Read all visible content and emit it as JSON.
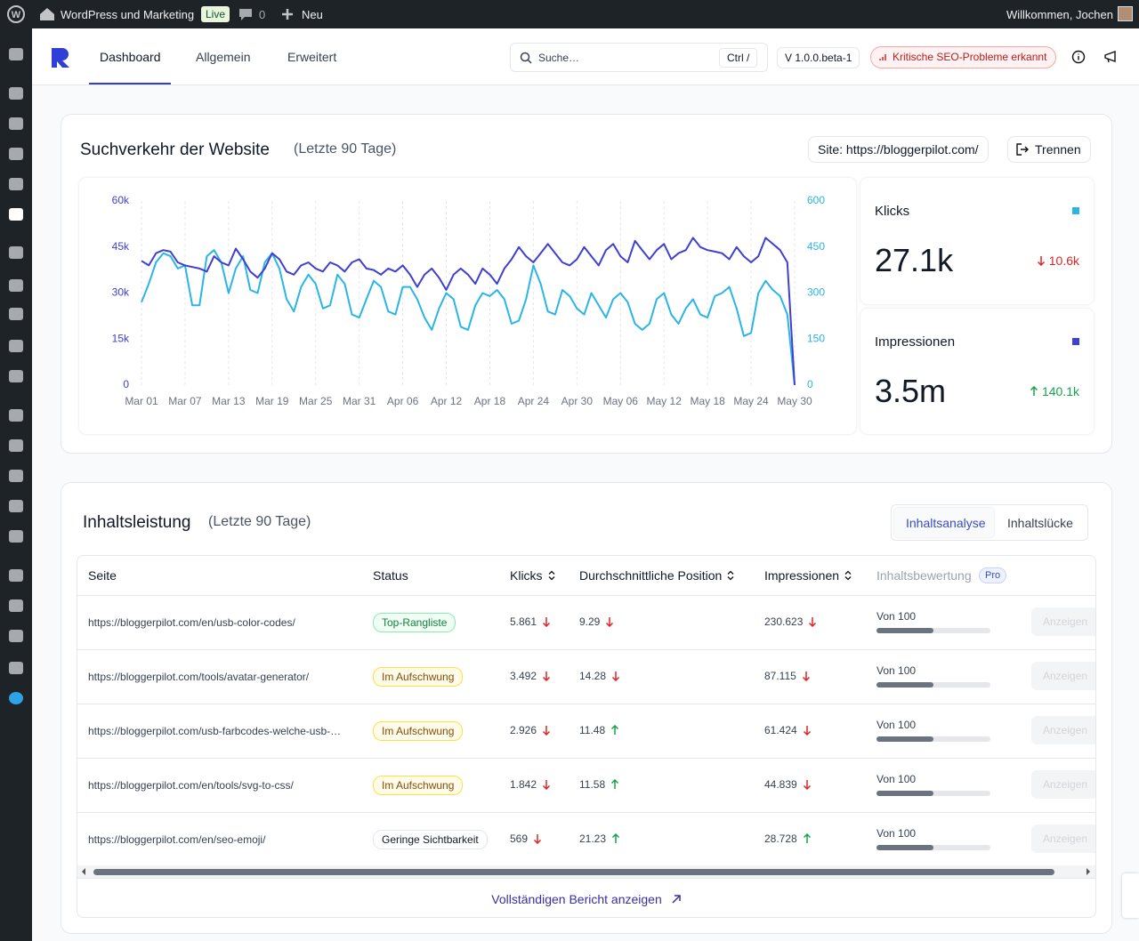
{
  "admin_bar": {
    "site": "WordPress und Marketing",
    "badge": "Live",
    "comments": "0",
    "new": "Neu",
    "greeting": "Willkommen, Jochen"
  },
  "header": {
    "tabs": [
      "Dashboard",
      "Allgemein",
      "Erweitert"
    ],
    "search_placeholder": "Suche…",
    "shortcut": "Ctrl /",
    "version": "V 1.0.0.beta-1",
    "alert": "Kritische SEO-Probleme erkannt"
  },
  "traffic": {
    "title": "Suchverkehr der Website",
    "subtitle": "(Letzte 90 Tage)",
    "site_button": "Site: https://bloggerpilot.com/",
    "disconnect": "Trennen",
    "stats": [
      {
        "value": "27.1k",
        "change": "10.6k",
        "trend": "down"
      },
      {
        "value": "3.5m",
        "change": "140.1k",
        "trend": "up"
      }
    ]
  },
  "chart_data": {
    "type": "line",
    "categories": [
      "Mar 01",
      null,
      null,
      null,
      null,
      null,
      "Mar 07",
      null,
      null,
      null,
      null,
      null,
      "Mar 13",
      null,
      null,
      null,
      null,
      null,
      "Mar 19",
      null,
      null,
      null,
      null,
      null,
      "Mar 25",
      null,
      null,
      null,
      null,
      null,
      "Mar 31",
      null,
      null,
      null,
      null,
      null,
      "Apr 06",
      null,
      null,
      null,
      null,
      null,
      "Apr 12",
      null,
      null,
      null,
      null,
      null,
      "Apr 18",
      null,
      null,
      null,
      null,
      null,
      "Apr 24",
      null,
      null,
      null,
      null,
      null,
      "Apr 30",
      null,
      null,
      null,
      null,
      null,
      "May 06",
      null,
      null,
      null,
      null,
      null,
      "May 12",
      null,
      null,
      null,
      null,
      null,
      "May 18",
      null,
      null,
      null,
      null,
      null,
      "May 24",
      null,
      null,
      null,
      null,
      null,
      "May 30"
    ],
    "series": [
      {
        "name": "Klicks",
        "color": "#2ab5e6",
        "axis": "y2",
        "values": [
          270,
          330,
          400,
          430,
          420,
          380,
          390,
          260,
          260,
          420,
          440,
          400,
          300,
          380,
          420,
          310,
          300,
          400,
          430,
          380,
          280,
          240,
          320,
          360,
          330,
          250,
          260,
          360,
          330,
          230,
          220,
          280,
          340,
          320,
          240,
          230,
          320,
          320,
          280,
          220,
          180,
          250,
          300,
          280,
          190,
          180,
          260,
          300,
          290,
          310,
          280,
          200,
          210,
          280,
          390,
          330,
          240,
          230,
          310,
          290,
          250,
          230,
          300,
          260,
          220,
          280,
          300,
          270,
          200,
          180,
          200,
          280,
          300,
          230,
          200,
          250,
          280,
          230,
          220,
          290,
          300,
          320,
          250,
          160,
          170,
          300,
          340,
          310,
          290,
          230,
          0
        ]
      },
      {
        "name": "Impressionen",
        "color": "#3f3fd1",
        "values": [
          40500,
          39000,
          43000,
          44000,
          43500,
          40000,
          39000,
          38500,
          38000,
          37000,
          42000,
          40000,
          39000,
          44500,
          41000,
          37000,
          35000,
          38000,
          43000,
          41000,
          37000,
          36000,
          39000,
          40000,
          38000,
          37000,
          40000,
          39000,
          37000,
          40000,
          41000,
          38000,
          37500,
          36000,
          38000,
          37000,
          39000,
          36000,
          32000,
          36000,
          38000,
          35000,
          31000,
          36000,
          38000,
          36000,
          33000,
          38000,
          36000,
          33000,
          38000,
          41000,
          45000,
          42000,
          40000,
          43000,
          46000,
          43000,
          40000,
          39000,
          41000,
          45000,
          42000,
          39000,
          44000,
          46000,
          42000,
          40000,
          47000,
          44000,
          41000,
          44000,
          46000,
          41000,
          43000,
          44000,
          48000,
          45000,
          44000,
          43500,
          43000,
          41000,
          45000,
          42000,
          40000,
          42000,
          48000,
          46000,
          44000,
          40000,
          0
        ]
      }
    ],
    "ylim": [
      0,
      60000
    ],
    "yticks": [
      0,
      {
        "value": 15000,
        "label": "15k"
      },
      {
        "value": 30000,
        "label": "30k"
      },
      {
        "value": 45000,
        "label": "45k"
      },
      {
        "value": 60000,
        "label": "60k"
      }
    ],
    "y2lim": [
      0,
      600
    ],
    "y2ticks": [
      0,
      150,
      300,
      450,
      600
    ],
    "grid": true
  },
  "content": {
    "title": "Inhaltsleistung",
    "subtitle": "(Letzte 90 Tage)",
    "tabs": [
      "Inhaltsanalyse",
      "Inhaltslücke"
    ],
    "columns": [
      "Seite",
      "Status",
      "Klicks",
      "Durchschnittliche Position",
      "Impressionen",
      "Inhaltsbewertung"
    ],
    "pro_badge": "Pro",
    "rows": [
      {
        "page": "https://bloggerpilot.com/en/usb-color-codes/",
        "status": "Top-Rangliste",
        "tone": "green",
        "clicks": "5.861",
        "clicks_trend": "down",
        "position": "9.29",
        "position_trend": "down",
        "impressions": "230.623",
        "impressions_trend": "down",
        "rating": "Von 100",
        "action": "Anzeigen"
      },
      {
        "page": "https://bloggerpilot.com/tools/avatar-generator/",
        "status": "Im Aufschwung",
        "tone": "yellow",
        "clicks": "3.492",
        "clicks_trend": "down",
        "position": "14.28",
        "position_trend": "down",
        "impressions": "87.115",
        "impressions_trend": "down",
        "rating": "Von 100",
        "action": "Anzeigen"
      },
      {
        "page": "https://bloggerpilot.com/usb-farbcodes-welche-usb-…",
        "status": "Im Aufschwung",
        "tone": "yellow",
        "clicks": "2.926",
        "clicks_trend": "down",
        "position": "11.48",
        "position_trend": "up",
        "impressions": "61.424",
        "impressions_trend": "down",
        "rating": "Von 100",
        "action": "Anzeigen"
      },
      {
        "page": "https://bloggerpilot.com/en/tools/svg-to-css/",
        "status": "Im Aufschwung",
        "tone": "yellow",
        "clicks": "1.842",
        "clicks_trend": "down",
        "position": "11.58",
        "position_trend": "up",
        "impressions": "44.839",
        "impressions_trend": "down",
        "rating": "Von 100",
        "action": "Anzeigen"
      },
      {
        "page": "https://bloggerpilot.com/en/seo-emoji/",
        "status": "Geringe Sichtbarkeit",
        "tone": "gray",
        "clicks": "569",
        "clicks_trend": "down",
        "position": "21.23",
        "position_trend": "up",
        "impressions": "28.728",
        "impressions_trend": "up",
        "rating": "Von 100",
        "action": "Anzeigen"
      }
    ],
    "footer_link": "Vollständigen Bericht anzeigen"
  }
}
